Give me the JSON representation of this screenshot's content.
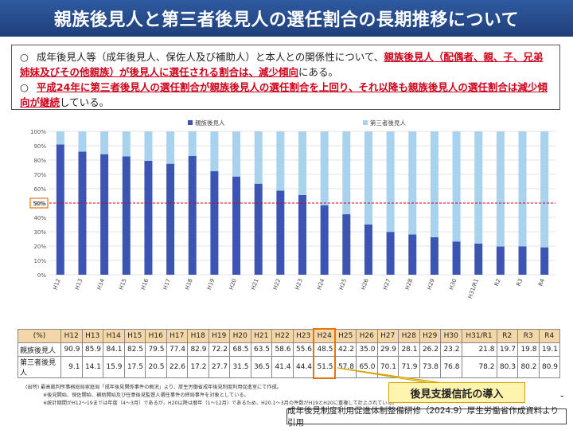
{
  "title": "親族後見人と第三者後見人の選任割合の長期推移について",
  "summary": {
    "line1_bullet": "○",
    "line1_pre": "成年後見人等（成年後見人、保佐人及び補助人）と本人との関係性について、",
    "line1_red": "親族後見人（配偶者、親、子、兄弟姉妹及びその他親族）が後見人に選任される割合は、減少傾向",
    "line1_post": "にある。",
    "line2_bullet": "○",
    "line2_red": "平成24年に第三者後見人の選任割合が親族後見人の選任割合を上回り、それ以降も親族後見人の選任割合は減少傾向が継続",
    "line2_post": "している。"
  },
  "chart_data": {
    "type": "bar",
    "stacked": true,
    "percent": true,
    "categories": [
      "H12",
      "H13",
      "H14",
      "H15",
      "H16",
      "H17",
      "H18",
      "H19",
      "H20",
      "H21",
      "H22",
      "H23",
      "H24",
      "H25",
      "H26",
      "H27",
      "H28",
      "H29",
      "H30",
      "H31/R1",
      "R2",
      "R3",
      "R4"
    ],
    "series": [
      {
        "name": "親族後見人",
        "color": "#3c55b5",
        "values": [
          90.9,
          85.9,
          84.1,
          82.5,
          79.5,
          77.4,
          82.9,
          72.2,
          68.5,
          63.5,
          58.6,
          55.6,
          48.5,
          42.2,
          35.0,
          29.9,
          28.1,
          26.2,
          23.2,
          21.8,
          19.7,
          19.8,
          19.1
        ]
      },
      {
        "name": "第三者後見人",
        "color": "#a9d2ee",
        "values": [
          9.1,
          14.1,
          15.9,
          17.5,
          20.5,
          22.6,
          17.2,
          27.7,
          31.5,
          36.5,
          41.4,
          44.4,
          51.5,
          57.8,
          65.0,
          70.1,
          71.9,
          73.8,
          76.8,
          78.2,
          80.3,
          80.2,
          80.9
        ]
      }
    ],
    "yticks": [
      "0%",
      "10%",
      "20%",
      "30%",
      "40%",
      "50%",
      "60%",
      "70%",
      "80%",
      "90%",
      "100%"
    ],
    "ylim": [
      0,
      100
    ],
    "reference_line": 50,
    "reference_label": "50%",
    "legend_position": "top"
  },
  "table": {
    "header_label": "(%)",
    "row1_label": "親族後見人",
    "row2_label": "第三者後見人"
  },
  "notes": {
    "n1": "(出所) 最高裁判所事務総局家庭局「成年後見関係事件の概況」より、厚生労働省成年後見制度利用促進室にて作成。",
    "n2": "※後見開始、保佐開始、補助開始及び任意後見監督人選任事件の終局事件を対象としている。",
    "n3": "※統計期間がH12～19までは年度（4～3月）であるが、H20以降は暦年（1～12月）であるため、H20.1～3月の件数がH19とH20に重複して計上されている。"
  },
  "callout": "後見支援信託の導入",
  "dash": "-",
  "source": "成年後見制度利用促進体制整備研修（2024.9）厚生労働省作成資料より引用",
  "colors": {
    "title_bg": "#2f5aa0",
    "highlight": "#d0021b",
    "box": "#e8730c",
    "callout_bg": "#fff3b0"
  }
}
